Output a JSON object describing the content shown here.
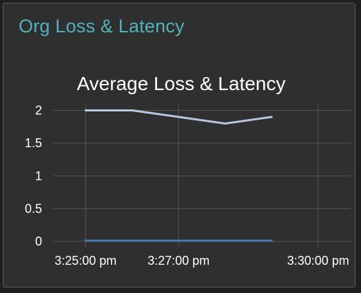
{
  "card": {
    "title": "Org Loss & Latency"
  },
  "colors": {
    "card_title": "#4fb3bf",
    "chart_title": "#ffffff",
    "tick_label": "#ffffff",
    "grid": "#555555",
    "series_latency": "#b8c7e3",
    "series_loss": "#4a78b5"
  },
  "chart_data": {
    "type": "line",
    "title": "Average Loss & Latency",
    "xlabel": "",
    "ylabel": "",
    "x_ticks": [
      "3:25:00 pm",
      "3:27:00 pm",
      "3:30:00 pm"
    ],
    "x_tick_minutes": [
      0,
      2,
      5
    ],
    "xlim_minutes": [
      -0.7,
      5.7
    ],
    "ylim": [
      0,
      2.1
    ],
    "y_ticks": [
      0,
      0.5,
      1,
      1.5,
      2
    ],
    "y_tick_labels": [
      "0",
      "0.5",
      "1",
      "1.5",
      "2"
    ],
    "grid": true,
    "legend": "none",
    "series": [
      {
        "x_minutes": [
          0.0,
          1.0,
          2.0,
          3.0,
          4.0
        ],
        "values": [
          2.0,
          2.0,
          1.9,
          1.8,
          1.9
        ]
      },
      {
        "x_minutes": [
          0.0,
          4.0
        ],
        "values": [
          0.01,
          0.01
        ]
      }
    ]
  }
}
